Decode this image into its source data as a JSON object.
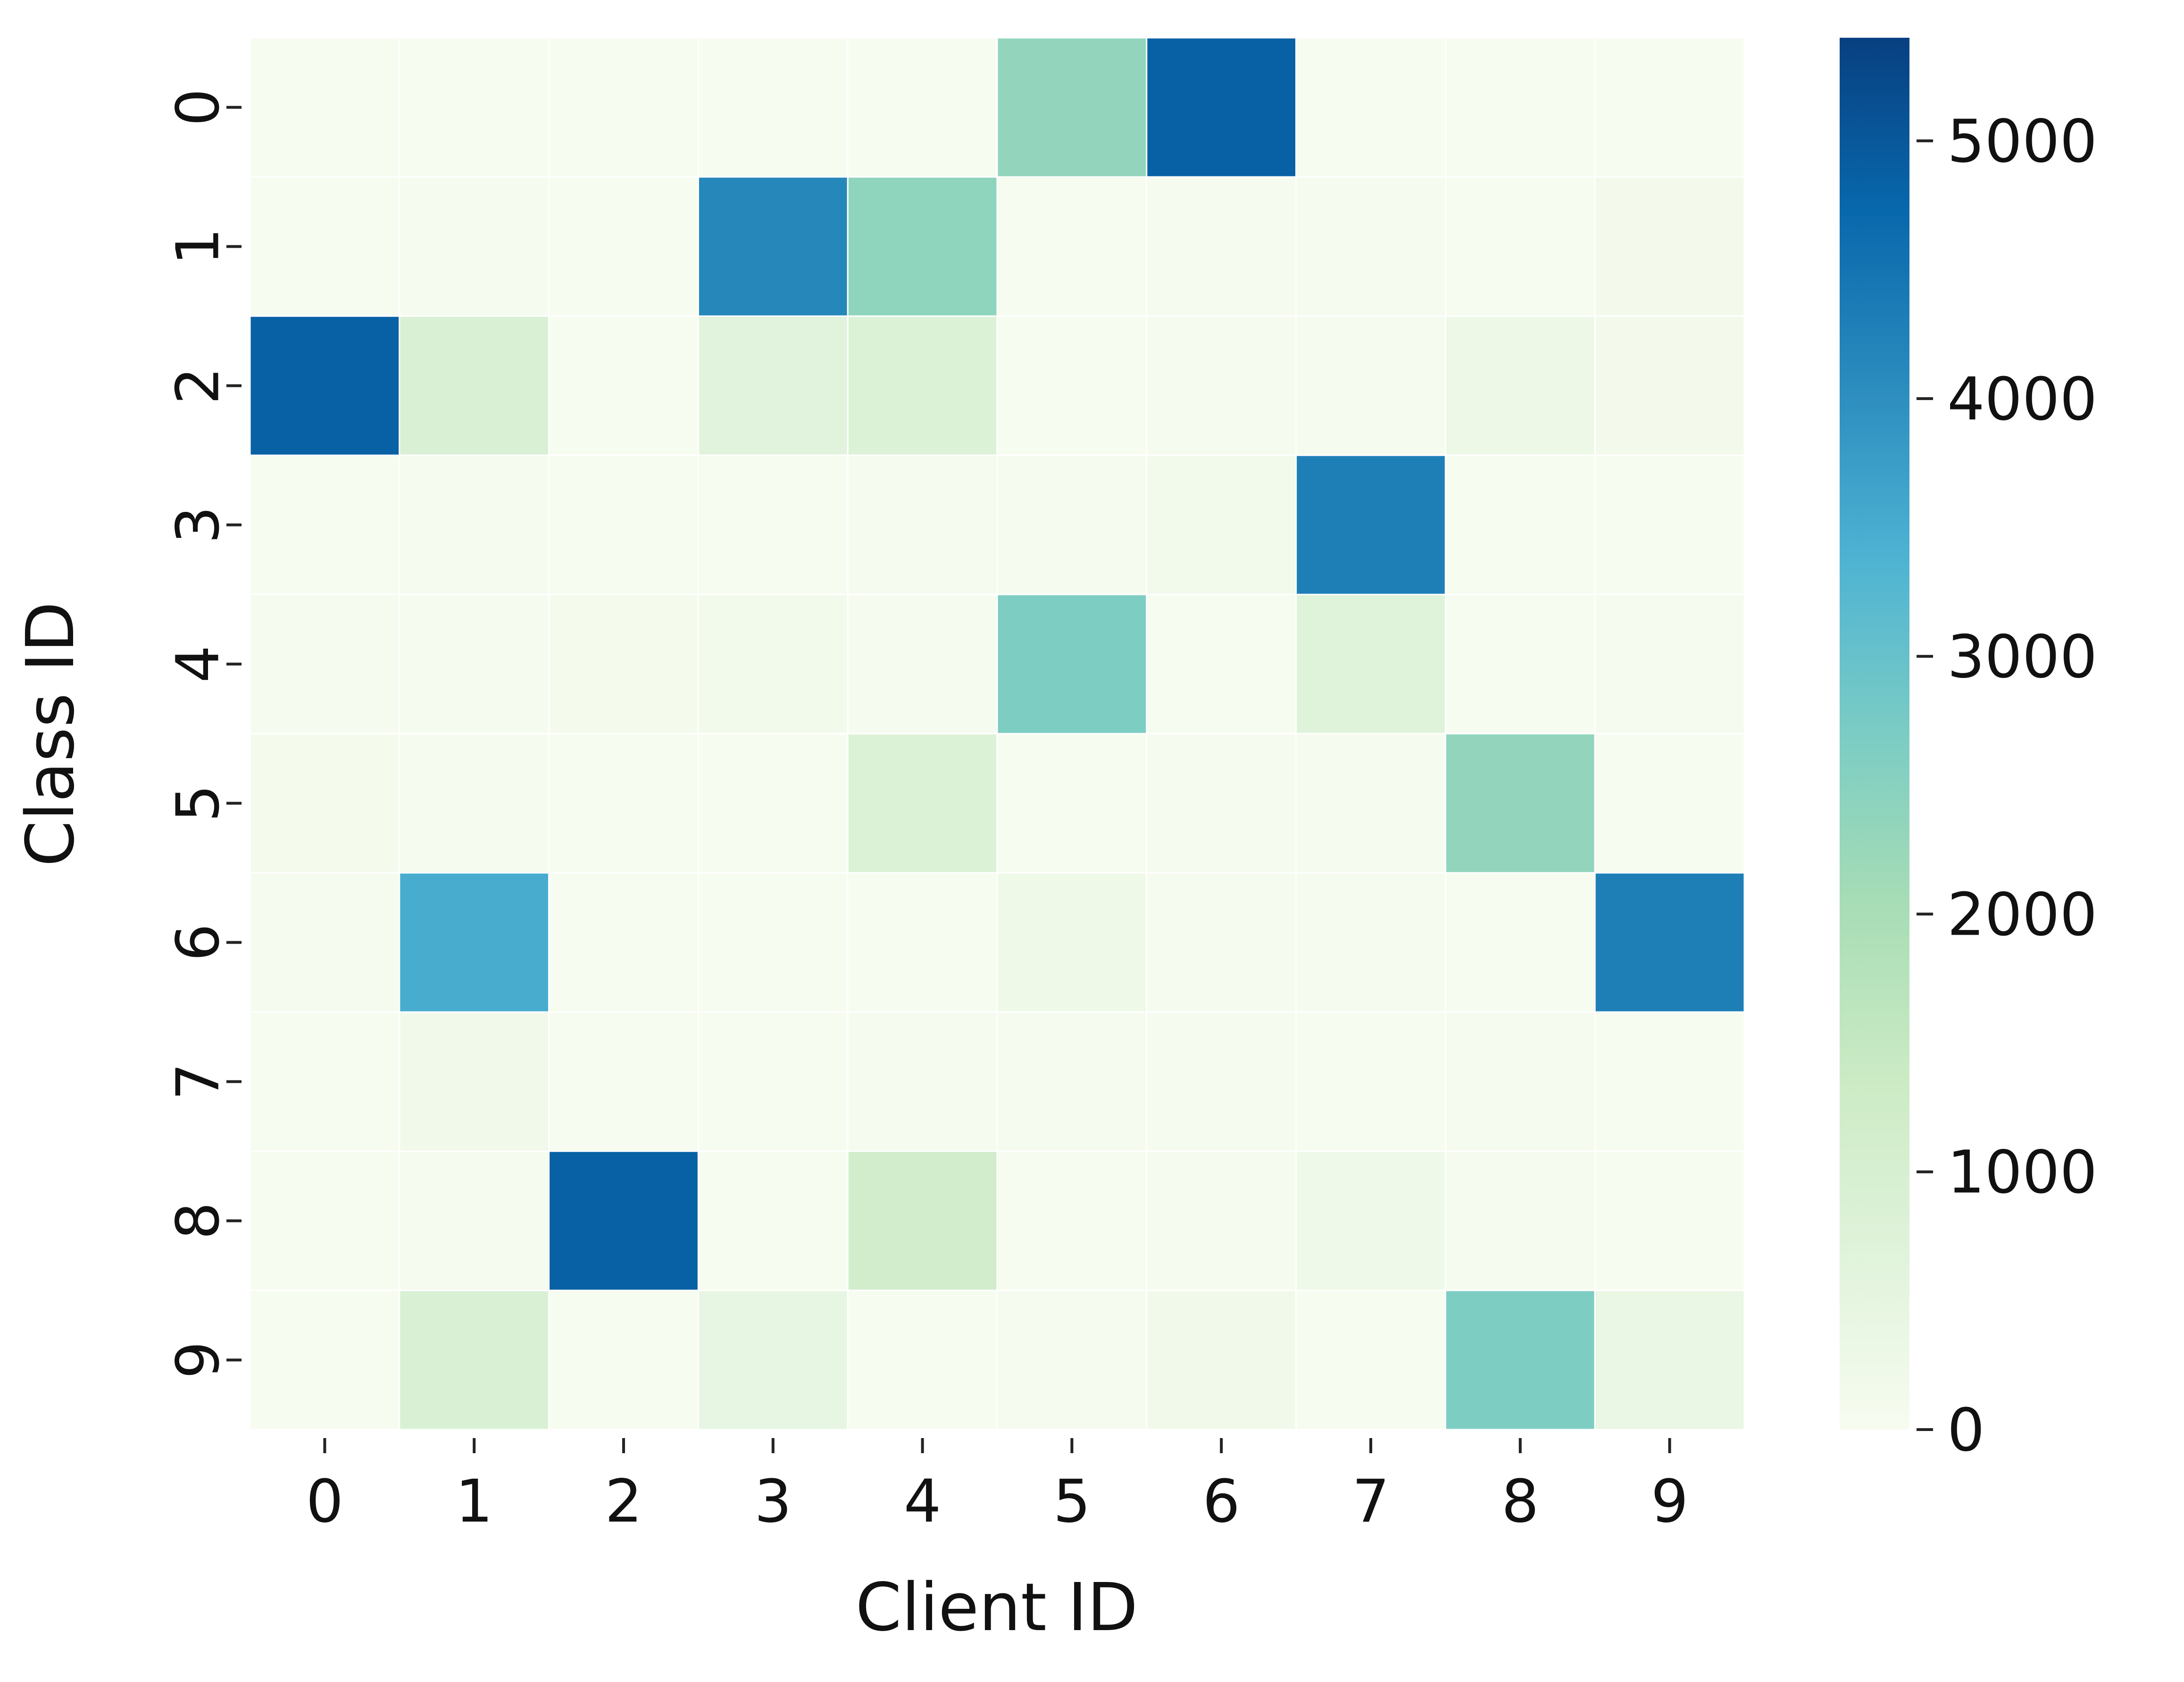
{
  "chart_data": {
    "type": "heatmap",
    "xlabel": "Client ID",
    "ylabel": "Class ID",
    "x_categories": [
      "0",
      "1",
      "2",
      "3",
      "4",
      "5",
      "6",
      "7",
      "8",
      "9"
    ],
    "y_categories": [
      "0",
      "1",
      "2",
      "3",
      "4",
      "5",
      "6",
      "7",
      "8",
      "9"
    ],
    "values": [
      [
        10,
        20,
        15,
        10,
        20,
        2350,
        4850,
        15,
        10,
        30
      ],
      [
        5,
        60,
        35,
        4150,
        2400,
        20,
        40,
        60,
        30,
        120
      ],
      [
        4850,
        900,
        30,
        650,
        800,
        30,
        60,
        40,
        300,
        120
      ],
      [
        20,
        40,
        30,
        20,
        50,
        40,
        140,
        4300,
        30,
        20
      ],
      [
        50,
        40,
        100,
        170,
        40,
        2650,
        20,
        700,
        30,
        50
      ],
      [
        90,
        40,
        30,
        10,
        800,
        20,
        40,
        60,
        2350,
        20
      ],
      [
        40,
        3500,
        30,
        10,
        20,
        250,
        70,
        40,
        30,
        4300
      ],
      [
        20,
        190,
        20,
        10,
        40,
        70,
        70,
        20,
        40,
        10
      ],
      [
        10,
        40,
        4850,
        10,
        1150,
        20,
        70,
        240,
        60,
        20
      ],
      [
        10,
        900,
        20,
        460,
        20,
        40,
        180,
        10,
        2650,
        400
      ]
    ],
    "colorbar": {
      "min": 0,
      "max": 5400,
      "ticks": [
        0,
        1000,
        2000,
        3000,
        4000,
        5000
      ],
      "tick_labels": [
        "0",
        "1000",
        "2000",
        "3000",
        "4000",
        "5000"
      ]
    },
    "colormap": [
      "#f7fcf0",
      "#e0f3db",
      "#ccebc5",
      "#a8ddb5",
      "#7bccc4",
      "#4eb3d3",
      "#2b8cbe",
      "#0868ac",
      "#084081"
    ],
    "grid": true,
    "legend": "none"
  }
}
